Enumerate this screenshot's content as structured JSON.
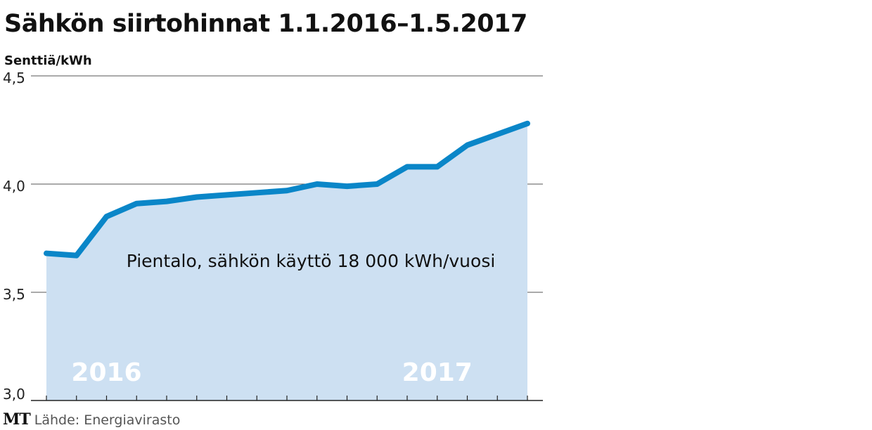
{
  "title": "Sähkön siirtohinnat 1.1.2016–1.5.2017",
  "logo": "MT",
  "source": "Lähde: Energiavirasto",
  "chart_data": {
    "type": "area",
    "ylabel": "Senttiä/kWh",
    "ylim": [
      3.0,
      4.5
    ],
    "yticks": [
      3.0,
      3.5,
      4.0,
      4.5
    ],
    "ytick_labels": [
      "3,0",
      "3,5",
      "4,0",
      "4,5"
    ],
    "x": [
      "2016-01",
      "2016-02",
      "2016-03",
      "2016-04",
      "2016-05",
      "2016-06",
      "2016-07",
      "2016-08",
      "2016-09",
      "2016-10",
      "2016-11",
      "2016-12",
      "2017-01",
      "2017-02",
      "2017-03",
      "2017-04",
      "2017-05"
    ],
    "xlim": [
      "2016-01",
      "2017-05"
    ],
    "year_labels": [
      {
        "label": "2016",
        "x": "2016-03"
      },
      {
        "label": "2017",
        "x": "2017-02"
      }
    ],
    "series": [
      {
        "name": "Pientalo, sähkön käyttö 18 000 kWh/vuosi",
        "values": [
          3.68,
          3.67,
          3.85,
          3.91,
          3.92,
          3.94,
          3.95,
          3.96,
          3.97,
          4.0,
          3.99,
          4.0,
          4.08,
          4.08,
          4.18,
          4.23,
          4.28
        ]
      }
    ],
    "grid": true,
    "colors": {
      "line": "#0a86c8",
      "fill": "#cde0f2",
      "grid": "#555555",
      "year_label": "#ffffff"
    }
  }
}
